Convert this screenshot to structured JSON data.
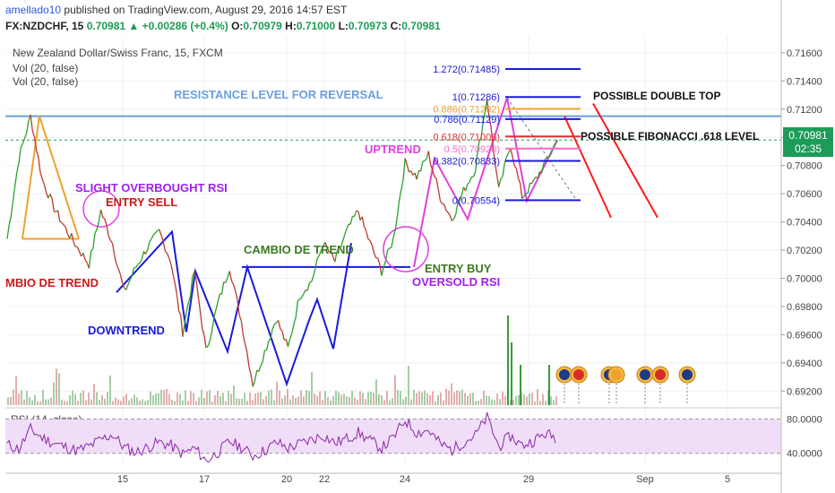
{
  "header": {
    "author": "amellado10",
    "published_text": "published on TradingView.com, August 29, 2016 14:57 EST",
    "symbol": "FX:NZDCHF, 15",
    "price": "0.70981",
    "change": "+0.00286 (+0.4%)",
    "o_label": "O:",
    "o_value": "0.70979",
    "h_label": "H:",
    "h_value": "0.71000",
    "l_label": "L:",
    "l_value": "0.70973",
    "c_label": "C:",
    "c_value": "0.70981"
  },
  "overlay": {
    "instrument_title": "New Zealand Dollar/Swiss Franc, 15, FXCM",
    "vol1": "Vol (20, false)",
    "vol2": "Vol (20, false)"
  },
  "rsi_panel": {
    "label": "RSI (14, close)",
    "levels": [
      "80.0000",
      "40.0000"
    ]
  },
  "price_badge": {
    "price": "0.70981",
    "countdown": "02:35"
  },
  "colors": {
    "up": "#2ca02c",
    "down": "#c0392b",
    "fib_red": "#ff0000",
    "rsi": "#8e24aa",
    "rsi_band": "#f0def8"
  },
  "annotations": {
    "resistance": "RESISTANCE LEVEL FOR REVERSAL",
    "double_top": "POSSIBLE DOUBLE TOP",
    "fib618": "POSSIBLE FIBONACCI .618 LEVEL",
    "uptrend": "UPTREND",
    "slight_ob": "SLIGHT OVERBOUGHT RSI",
    "entry_sell": "ENTRY SELL",
    "cambio_left": "MBIO DE TREND",
    "cambio_mid": "CAMBIO DE TREND",
    "entry_buy": "ENTRY BUY",
    "oversold": "OVERSOLD RSI",
    "downtrend": "DOWNTREND"
  },
  "fib_levels": [
    {
      "label": "1.272(0.71485)",
      "value": 0.71485,
      "color": "#1a1adb"
    },
    {
      "label": "1(0.71286)",
      "value": 0.71286,
      "color": "#1a1adb"
    },
    {
      "label": "0.886(0.71202)",
      "value": 0.71202,
      "color": "#f0a030"
    },
    {
      "label": "0.786(0.71129)",
      "value": 0.71129,
      "color": "#1a1adb"
    },
    {
      "label": "0.618(0.71006)",
      "value": 0.71006,
      "color": "#e03030"
    },
    {
      "label": "0.5(0.70920)",
      "value": 0.7092,
      "color": "#ff69c8"
    },
    {
      "label": "0.382(0.70833)",
      "value": 0.70833,
      "color": "#1a1adb"
    },
    {
      "label": "0(0.70554)",
      "value": 0.70554,
      "color": "#1a1adb"
    }
  ],
  "chart_data": {
    "type": "line",
    "title": "New Zealand Dollar/Swiss Franc, 15, FXCM",
    "x_tick_labels": [
      "15",
      "17",
      "20",
      "22",
      "24",
      "29",
      "Sep",
      "5"
    ],
    "y_tick_labels": [
      "0.71600",
      "0.71400",
      "0.71200",
      "0.71000",
      "0.70800",
      "0.70600",
      "0.70400",
      "0.70200",
      "0.70000",
      "0.69800",
      "0.69600",
      "0.69400",
      "0.69200"
    ],
    "ylim": [
      0.691,
      0.7172
    ],
    "last_price": 0.70981,
    "series": [
      {
        "values": [
          0.7028,
          0.7085,
          0.7115,
          0.707,
          0.705,
          0.7035,
          0.7022,
          0.701,
          0.7048,
          0.7025,
          0.699,
          0.7008,
          0.7022,
          0.7033,
          0.7012,
          0.6962,
          0.7005,
          0.6948,
          0.6982,
          0.7008,
          0.697,
          0.6925,
          0.6948,
          0.6972,
          0.695,
          0.6988,
          0.6998,
          0.7025,
          0.7012,
          0.7033,
          0.7048,
          0.7025,
          0.7005,
          0.7028,
          0.7082,
          0.7072,
          0.7088,
          0.7058,
          0.7042,
          0.7062,
          0.7078,
          0.7128,
          0.7062,
          0.7095,
          0.7058,
          0.7068,
          0.7082,
          0.7098
        ]
      }
    ],
    "rsi": {
      "label": "RSI (14, close)",
      "levels": [
        80,
        40
      ],
      "ylim": [
        25,
        90
      ],
      "values": [
        50,
        45,
        68,
        58,
        52,
        47,
        43,
        48,
        56,
        62,
        47,
        41,
        47,
        53,
        49,
        39,
        46,
        31,
        41,
        54,
        47,
        37,
        43,
        53,
        46,
        51,
        56,
        61,
        52,
        57,
        64,
        55,
        46,
        58,
        79,
        64,
        67,
        51,
        44,
        53,
        61,
        82,
        48,
        60,
        49,
        55,
        63,
        58
      ]
    }
  }
}
